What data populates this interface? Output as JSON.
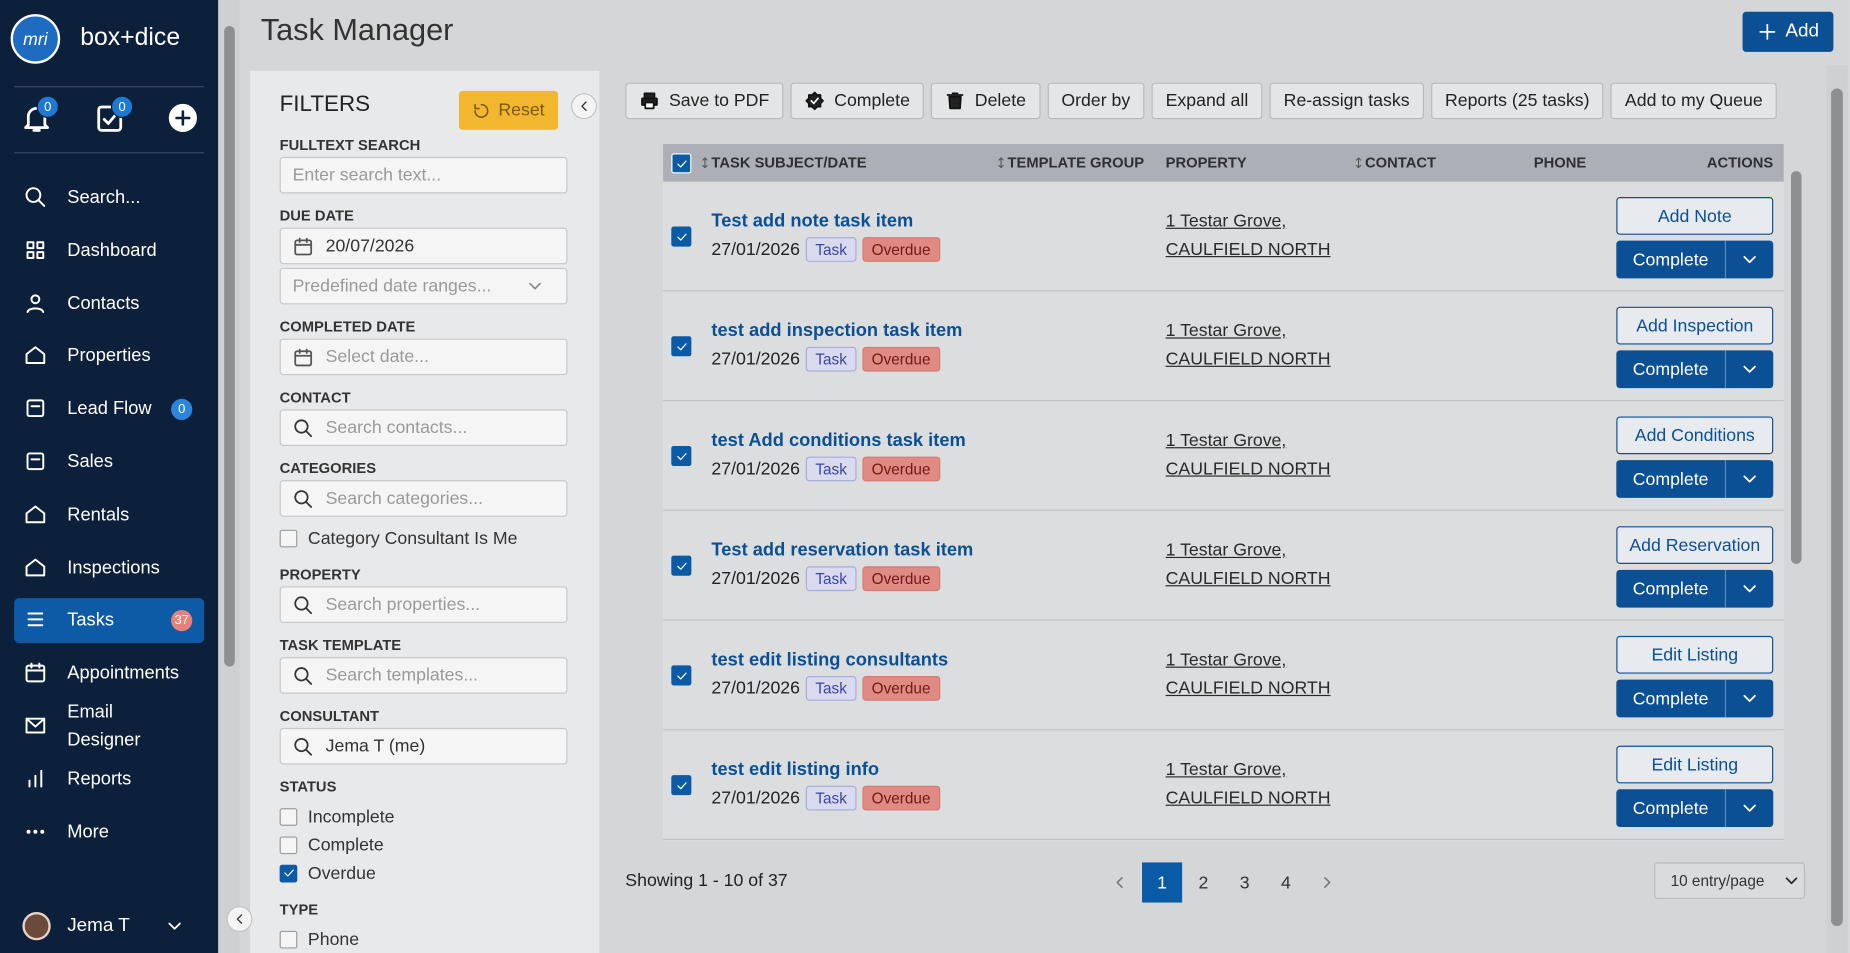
{
  "sidebar": {
    "logo": "mri",
    "brand": "box+dice",
    "notification_count": 0,
    "task_count": 0,
    "nav": [
      {
        "label": "Search..."
      },
      {
        "label": "Dashboard"
      },
      {
        "label": "Contacts"
      },
      {
        "label": "Properties"
      },
      {
        "label": "Lead Flow",
        "badge": 0
      },
      {
        "label": "Sales"
      },
      {
        "label": "Rentals"
      },
      {
        "label": "Inspections"
      },
      {
        "label": "Tasks",
        "badge": 37,
        "active": true
      },
      {
        "label": "Appointments"
      },
      {
        "label": "Email Designer"
      },
      {
        "label": "Reports"
      },
      {
        "label": "More"
      }
    ],
    "user": "Jema T"
  },
  "header": {
    "title": "Task Manager",
    "add_button": "Add"
  },
  "filters": {
    "title": "FILTERS",
    "reset_button": "Reset",
    "fields": [
      {
        "label": "FULLTEXT SEARCH",
        "inputs": [
          {
            "kind": "text",
            "placeholder": "Enter search text..."
          }
        ]
      },
      {
        "label": "DUE DATE",
        "inputs": [
          {
            "kind": "date",
            "value": "20/07/2026"
          },
          {
            "kind": "select",
            "placeholder": "Predefined date ranges..."
          }
        ]
      },
      {
        "label": "COMPLETED DATE",
        "inputs": [
          {
            "kind": "date",
            "placeholder": "Select date..."
          }
        ]
      },
      {
        "label": "CONTACT",
        "inputs": [
          {
            "kind": "search",
            "placeholder": "Search contacts..."
          }
        ]
      },
      {
        "label": "CATEGORIES",
        "inputs": [
          {
            "kind": "search",
            "placeholder": "Search categories..."
          }
        ],
        "options": [
          {
            "label": "Category Consultant Is Me",
            "checked": false
          }
        ]
      },
      {
        "label": "PROPERTY",
        "inputs": [
          {
            "kind": "search",
            "placeholder": "Search properties..."
          }
        ]
      },
      {
        "label": "TASK TEMPLATE",
        "inputs": [
          {
            "kind": "search",
            "placeholder": "Search templates..."
          }
        ]
      },
      {
        "label": "CONSULTANT",
        "inputs": [
          {
            "kind": "search",
            "value": "Jema T (me)"
          }
        ]
      },
      {
        "label": "STATUS",
        "options": [
          {
            "label": "Incomplete",
            "checked": false
          },
          {
            "label": "Complete",
            "checked": false
          },
          {
            "label": "Overdue",
            "checked": true
          }
        ]
      },
      {
        "label": "TYPE",
        "options": [
          {
            "label": "Phone",
            "checked": false
          }
        ]
      }
    ]
  },
  "toolbar": [
    "Save to PDF",
    "Complete",
    "Delete",
    "Order by",
    "Expand all",
    "Re-assign tasks",
    "Reports (25 tasks)",
    "Add to my Queue"
  ],
  "table": {
    "columns": [
      {
        "label": "TASK SUBJECT/DATE",
        "sortable": true
      },
      {
        "label": "TEMPLATE GROUP",
        "sortable": true
      },
      {
        "label": "PROPERTY",
        "sortable": false
      },
      {
        "label": "CONTACT",
        "sortable": true
      },
      {
        "label": "PHONE",
        "sortable": false
      },
      {
        "label": "ACTIONS",
        "sortable": false
      }
    ],
    "rows": [
      {
        "subject": "Test add note task item",
        "date": "27/01/2026",
        "tags": [
          "Task",
          "Overdue"
        ],
        "property": [
          "1 Testar Grove,",
          "CAULFIELD NORTH"
        ],
        "action": "Add Note",
        "complete": "Complete",
        "checked": true
      },
      {
        "subject": "test add inspection task item",
        "date": "27/01/2026",
        "tags": [
          "Task",
          "Overdue"
        ],
        "property": [
          "1 Testar Grove,",
          "CAULFIELD NORTH"
        ],
        "action": "Add Inspection",
        "complete": "Complete",
        "checked": true
      },
      {
        "subject": "test Add conditions task item",
        "date": "27/01/2026",
        "tags": [
          "Task",
          "Overdue"
        ],
        "property": [
          "1 Testar Grove,",
          "CAULFIELD NORTH"
        ],
        "action": "Add Conditions",
        "complete": "Complete",
        "checked": true
      },
      {
        "subject": "Test add reservation task item",
        "date": "27/01/2026",
        "tags": [
          "Task",
          "Overdue"
        ],
        "property": [
          "1 Testar Grove,",
          "CAULFIELD NORTH"
        ],
        "action": "Add Reservation",
        "complete": "Complete",
        "checked": true
      },
      {
        "subject": "test edit listing consultants",
        "date": "27/01/2026",
        "tags": [
          "Task",
          "Overdue"
        ],
        "property": [
          "1 Testar Grove,",
          "CAULFIELD NORTH"
        ],
        "action": "Edit Listing",
        "complete": "Complete",
        "checked": true
      },
      {
        "subject": "test edit listing info",
        "date": "27/01/2026",
        "tags": [
          "Task",
          "Overdue"
        ],
        "property": [
          "1 Testar Grove,",
          "CAULFIELD NORTH"
        ],
        "action": "Edit Listing",
        "complete": "Complete",
        "checked": true
      }
    ]
  },
  "pagination": {
    "summary": "Showing 1 - 10 of 37",
    "pages": [
      1,
      2,
      3,
      4
    ],
    "current": 1,
    "page_size": "10 entry/page"
  }
}
